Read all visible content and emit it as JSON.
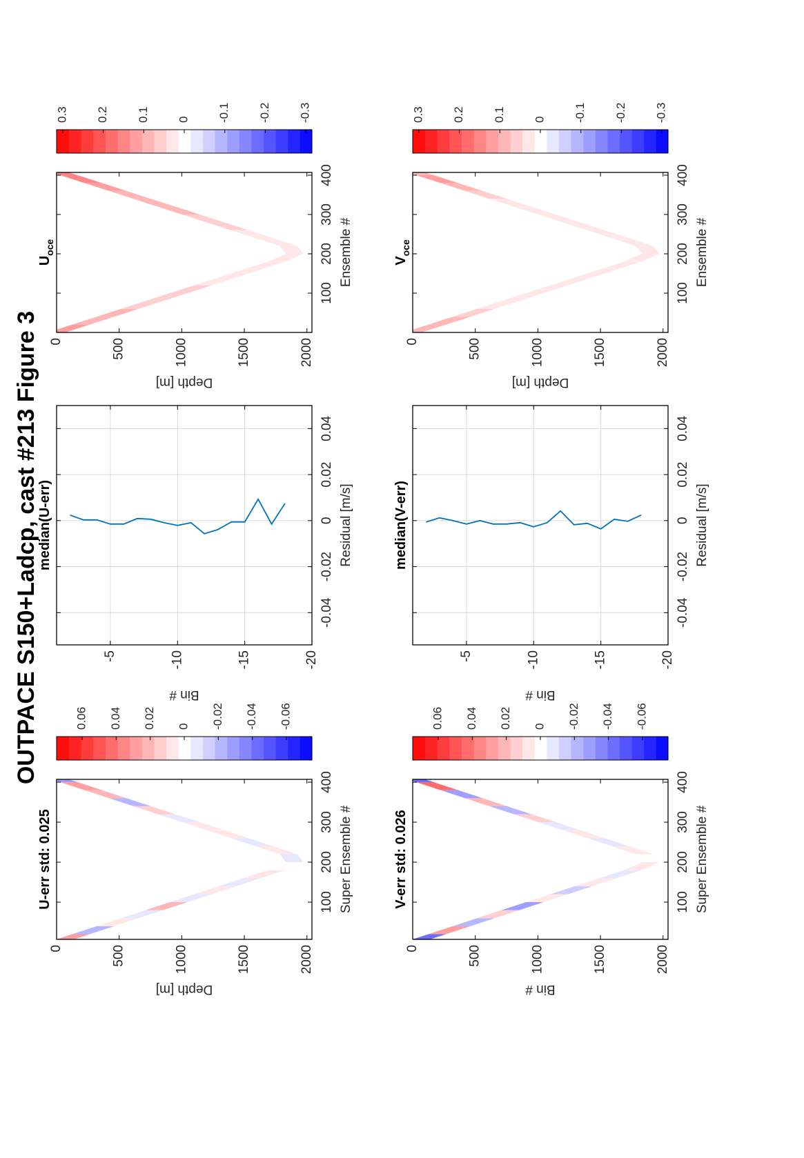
{
  "title": "OUTPACE S150+Ladcp, cast #213  Figure 3",
  "chart_data": [
    {
      "type": "heatmap",
      "title": "U-err std: 0.025",
      "xlabel": "Super Ensemble #",
      "ylabel": "Depth [m]",
      "x": [
        10,
        30,
        50,
        70,
        90,
        110,
        130,
        150,
        170,
        190,
        210,
        230,
        250,
        270,
        290,
        310,
        330,
        350,
        370,
        390,
        410
      ],
      "depth": [
        98,
        293,
        488,
        683,
        878,
        1073,
        1268,
        1463,
        1659,
        1854,
        1951,
        1756,
        1561,
        1366,
        1171,
        976,
        780,
        585,
        390,
        195,
        0
      ],
      "values": [
        0.03,
        -0.02,
        0.01,
        -0.01,
        0.02,
        -0.01,
        0.01,
        -0.005,
        0.01,
        0,
        -0.01,
        0.01,
        -0.005,
        0.01,
        0.005,
        -0.01,
        0.015,
        -0.02,
        0.02,
        0.03,
        -0.03
      ],
      "xlim": [
        7,
        407
      ],
      "xticks": [
        100,
        200,
        300,
        400
      ],
      "ylim": [
        0,
        2040
      ],
      "yticks": [
        0,
        500,
        1000,
        1500,
        2000
      ],
      "y_reversed": true,
      "colorbar": {
        "lim": [
          -0.075,
          0.075
        ],
        "ticks": [
          0.06,
          0.04,
          0.02,
          0,
          -0.02,
          -0.04,
          -0.06
        ],
        "levels": 21
      }
    },
    {
      "type": "line",
      "title": "median(U-err)",
      "xlabel": "Residual [m/s]",
      "ylabel": "Bin #",
      "color": "#0072bd",
      "y": [
        -2,
        -3,
        -4,
        -5,
        -6,
        -7,
        -8,
        -9,
        -10,
        -11,
        -12,
        -13,
        -14,
        -15,
        -16,
        -17,
        -18
      ],
      "values": [
        0.0024,
        0.0003,
        0.0003,
        -0.0015,
        -0.0015,
        0.0009,
        0.0006,
        -0.0009,
        -0.0021,
        -0.0009,
        -0.0057,
        -0.0039,
        -0.0006,
        -0.0006,
        0.0093,
        -0.0015,
        0.0075
      ],
      "xlim": [
        -0.054,
        0.05
      ],
      "xticks": [
        -0.04,
        -0.02,
        0,
        0.02,
        0.04
      ],
      "ylim": [
        -20,
        -1
      ],
      "yticks": [
        -5,
        -10,
        -15,
        -20
      ],
      "grid": true
    },
    {
      "type": "heatmap",
      "title": "U",
      "title_subscript": "oce",
      "xlabel": "Ensemble #",
      "ylabel": "Depth [m]",
      "x": [
        10,
        30,
        50,
        70,
        90,
        110,
        130,
        150,
        170,
        190,
        210,
        230,
        250,
        270,
        290,
        310,
        330,
        350,
        370,
        390,
        410
      ],
      "depth": [
        98,
        293,
        488,
        683,
        878,
        1073,
        1268,
        1463,
        1659,
        1854,
        1951,
        1756,
        1561,
        1366,
        1171,
        976,
        780,
        585,
        390,
        195,
        0
      ],
      "values": [
        0.12,
        0.1,
        0.09,
        0.07,
        0.06,
        0.05,
        0.04,
        0.03,
        0.03,
        0.02,
        0.02,
        0.03,
        0.04,
        0.05,
        0.06,
        0.08,
        0.09,
        0.1,
        0.12,
        0.14,
        0.15
      ],
      "xlim": [
        0,
        407
      ],
      "xticks": [
        100,
        200,
        300,
        400
      ],
      "ylim": [
        0,
        2040
      ],
      "yticks": [
        0,
        500,
        1000,
        1500,
        2000
      ],
      "y_reversed": true,
      "colorbar": {
        "lim": [
          -0.315,
          0.315
        ],
        "ticks": [
          0.3,
          0.2,
          0.1,
          0,
          -0.1,
          -0.2,
          -0.3
        ],
        "levels": 21
      }
    },
    {
      "type": "heatmap",
      "title": "V-err std: 0.026",
      "xlabel": "Super Ensemble #",
      "ylabel": "Bin #",
      "x": [
        10,
        30,
        50,
        70,
        90,
        110,
        130,
        150,
        170,
        190,
        210,
        230,
        250,
        270,
        290,
        310,
        330,
        350,
        370,
        390,
        410
      ],
      "depth": [
        98,
        293,
        488,
        683,
        878,
        1073,
        1268,
        1463,
        1659,
        1854,
        1951,
        1756,
        1561,
        1366,
        1171,
        976,
        780,
        585,
        390,
        195,
        0
      ],
      "values": [
        -0.04,
        0.03,
        -0.02,
        0.015,
        -0.03,
        0.01,
        -0.015,
        0.01,
        -0.005,
        0.005,
        0,
        0.01,
        -0.01,
        0.005,
        -0.01,
        0.015,
        -0.02,
        0.02,
        -0.03,
        0.04,
        -0.04
      ],
      "xlim": [
        7,
        407
      ],
      "xticks": [
        100,
        200,
        300,
        400
      ],
      "ylim": [
        0,
        2040
      ],
      "yticks": [
        0,
        500,
        1000,
        1500,
        2000
      ],
      "y_reversed": true,
      "colorbar": {
        "lim": [
          -0.075,
          0.075
        ],
        "ticks": [
          0.06,
          0.04,
          0.02,
          0,
          -0.02,
          -0.04,
          -0.06
        ],
        "levels": 21
      }
    },
    {
      "type": "line",
      "title": "median(V-err)",
      "xlabel": "Residual [m/s]",
      "ylabel": "Bin #",
      "color": "#0072bd",
      "y": [
        -2,
        -3,
        -4,
        -5,
        -6,
        -7,
        -8,
        -9,
        -10,
        -11,
        -12,
        -13,
        -14,
        -15,
        -16,
        -17,
        -18
      ],
      "values": [
        -0.0006,
        0.0012,
        0,
        -0.0015,
        0,
        -0.0015,
        -0.0015,
        -0.0009,
        -0.0027,
        -0.0009,
        0.0042,
        -0.0018,
        -0.0012,
        -0.0036,
        0.0006,
        -0.0003,
        0.0024
      ],
      "xlim": [
        -0.054,
        0.05
      ],
      "xticks": [
        -0.04,
        -0.02,
        0,
        0.02,
        0.04
      ],
      "ylim": [
        -20,
        -1
      ],
      "yticks": [
        -5,
        -10,
        -15,
        -20
      ],
      "grid": true
    },
    {
      "type": "heatmap",
      "title": "V",
      "title_subscript": "oce",
      "xlabel": "Ensemble #",
      "ylabel": "Depth [m]",
      "x": [
        10,
        30,
        50,
        70,
        90,
        110,
        130,
        150,
        170,
        190,
        210,
        230,
        250,
        270,
        290,
        310,
        330,
        350,
        370,
        390,
        410
      ],
      "depth": [
        98,
        293,
        488,
        683,
        878,
        1073,
        1268,
        1463,
        1659,
        1854,
        1951,
        1756,
        1561,
        1366,
        1171,
        976,
        780,
        585,
        390,
        195,
        0
      ],
      "values": [
        0.08,
        0.1,
        0.07,
        0.04,
        0.03,
        0.02,
        0.02,
        0.02,
        0.03,
        0.02,
        0.02,
        0.02,
        0.02,
        0.02,
        0.03,
        0.03,
        0.04,
        0.07,
        0.1,
        0.12,
        0.1
      ],
      "xlim": [
        0,
        407
      ],
      "xticks": [
        100,
        200,
        300,
        400
      ],
      "ylim": [
        0,
        2040
      ],
      "yticks": [
        0,
        500,
        1000,
        1500,
        2000
      ],
      "y_reversed": true,
      "colorbar": {
        "lim": [
          -0.315,
          0.315
        ],
        "ticks": [
          0.3,
          0.2,
          0.1,
          0,
          -0.1,
          -0.2,
          -0.3
        ],
        "levels": 21
      }
    }
  ]
}
